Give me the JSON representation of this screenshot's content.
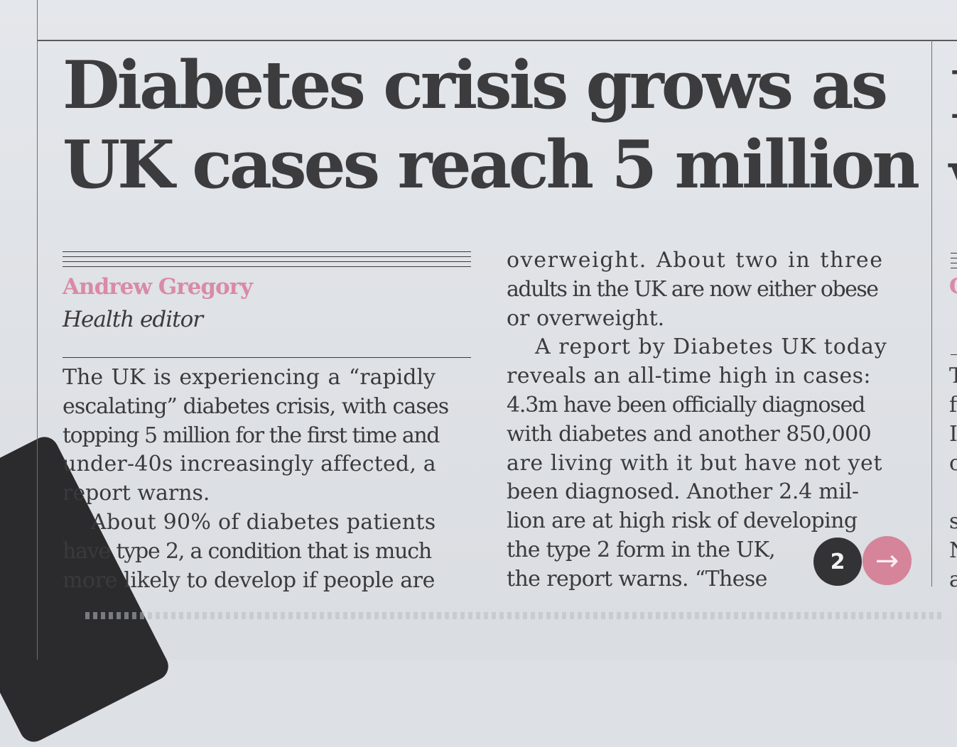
{
  "article": {
    "headline_line1": "Diabetes crisis grows as",
    "headline_line2": "UK cases reach 5 million",
    "author": "Andrew Gregory",
    "role": "Health editor",
    "col1": [
      "The UK is experiencing a “rapidly",
      "escalating” diabetes crisis, with cases",
      "topping 5 million for the first time and",
      "under-40s increasingly affected, a",
      "report warns.",
      "About 90% of diabetes patients",
      "have type 2, a condition that is much",
      "more likely to develop if people are"
    ],
    "col2": [
      "overweight. About two in three",
      "adults in the UK are now either obese",
      "or overweight.",
      "A report by Diabetes UK today",
      "reveals an all-time high in cases:",
      "4.3m have been officially diagnosed",
      "with diabetes and another 850,000",
      "are living with it but have not yet",
      "been diagnosed. Another 2.4 mil-",
      "lion are at high risk of developing",
      "the type 2 form in the UK,",
      "the report warns. “These"
    ],
    "page_badge": "2",
    "next_arrow": "→"
  },
  "next_column_fragments": [
    "I",
    "v",
    "C",
    "T",
    "f",
    "I",
    "c",
    "s",
    "N",
    "a"
  ],
  "colors": {
    "author": "#d98aa6",
    "badge": "#333336",
    "arrow_button": "#d5849a",
    "text": "#3a3a3c"
  }
}
